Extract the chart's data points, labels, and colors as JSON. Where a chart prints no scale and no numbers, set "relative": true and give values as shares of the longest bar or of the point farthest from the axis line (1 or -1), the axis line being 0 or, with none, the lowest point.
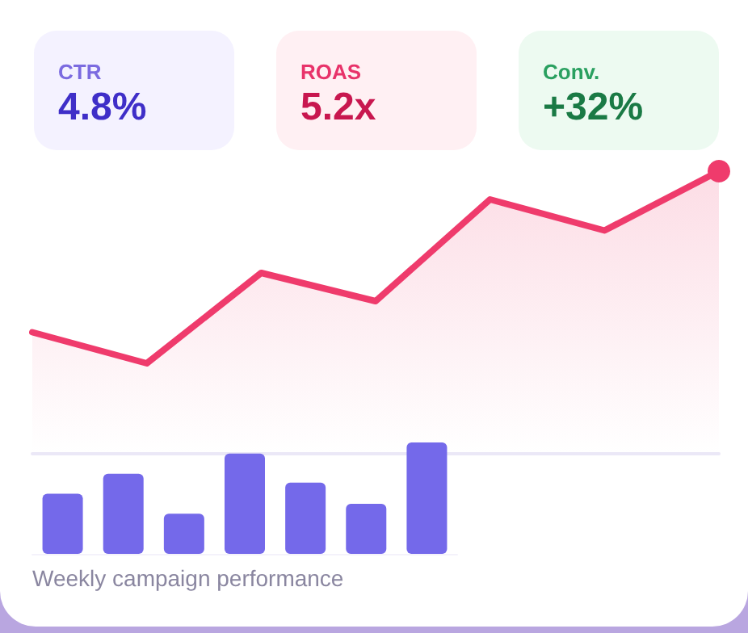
{
  "chart_data": [
    {
      "type": "other",
      "annotations": [
        "CTR",
        "4.8%",
        "ROAS",
        "5.2x",
        "Conv.",
        "+32%"
      ]
    },
    {
      "type": "area",
      "relative": true,
      "categories": [
        null,
        null,
        null,
        null,
        null,
        null,
        null
      ],
      "series": [
        {
          "color": "#ef3b6c",
          "values": [
            0.43,
            0.32,
            0.64,
            0.54,
            0.9,
            0.79,
            1
          ]
        }
      ],
      "marker": "none",
      "grid": false
    },
    {
      "type": "bar",
      "relative": true,
      "categories": [
        null,
        null,
        null,
        null,
        null,
        null,
        null
      ],
      "series": [
        {
          "color": "#7469ea",
          "values": [
            0.54,
            0.72,
            0.36,
            0.9,
            0.64,
            0.45,
            1
          ]
        }
      ],
      "grid": false,
      "annotations": [
        "Weekly campaign performance"
      ]
    }
  ]
}
